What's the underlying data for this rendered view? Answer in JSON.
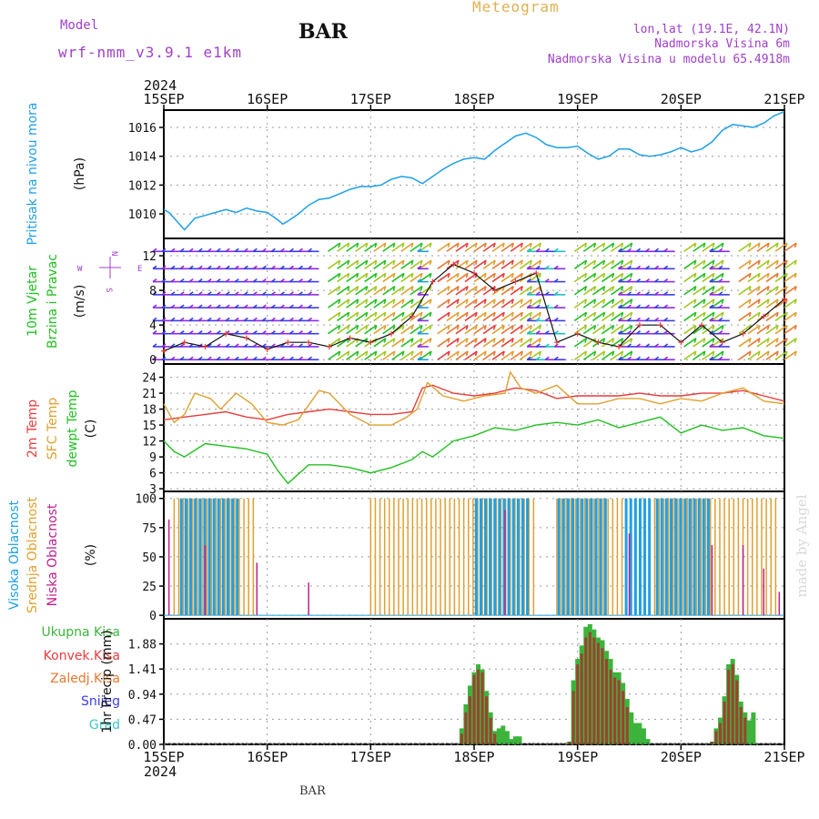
{
  "header": {
    "model_label": "Model",
    "model_name": "wrf-nmm_v3.9.1 e1km",
    "station": "BAR",
    "title": "Meteogram",
    "lonlat": "lon,lat (19.1E, 42.1N)",
    "altitude": "Nadmorska Visina 6m",
    "model_altitude": "Nadmorska Visina u modelu 65.4918m",
    "credit": "made by Angel",
    "footer_station": "BAR"
  },
  "colors": {
    "pressure": "#1fa0e6",
    "t2m": "#e83c3c",
    "sfc": "#e0a030",
    "dewpt": "#22c022",
    "high_cloud": "#1fa0e6",
    "mid_cloud": "#e0a030",
    "low_cloud": "#c0208c",
    "total_rain": "#3cb43c",
    "conv_rain": "#e83c3c",
    "frz_rain": "#e87830",
    "snow": "#3c3ce6",
    "hail": "#3cc8c8",
    "header_purple": "#a040c8",
    "header_gold": "#e0b050"
  },
  "chart_data": [
    {
      "type": "line",
      "name": "pressure",
      "ylabels": [
        "Pritisak na nivou mora",
        "(hPa)"
      ],
      "yticks": [
        1010,
        1012,
        1014,
        1016
      ],
      "ylim": [
        1008.3,
        1017.2
      ],
      "x_unit": "days since 15SEP",
      "xticks": [
        "15SEP",
        "16SEP",
        "17SEP",
        "18SEP",
        "19SEP",
        "20SEP",
        "21SEP"
      ],
      "year": "2024",
      "grid": true,
      "series": [
        {
          "name": "slp",
          "x": [
            0,
            0.05,
            0.1,
            0.2,
            0.25,
            0.3,
            0.4,
            0.5,
            0.6,
            0.7,
            0.8,
            0.9,
            1.0,
            1.1,
            1.15,
            1.2,
            1.3,
            1.4,
            1.5,
            1.6,
            1.7,
            1.8,
            1.9,
            2.0,
            2.1,
            2.2,
            2.3,
            2.4,
            2.5,
            2.6,
            2.7,
            2.8,
            2.9,
            3.0,
            3.1,
            3.2,
            3.3,
            3.4,
            3.5,
            3.6,
            3.7,
            3.8,
            3.9,
            4.0,
            4.1,
            4.2,
            4.3,
            4.4,
            4.5,
            4.6,
            4.7,
            4.8,
            4.9,
            5.0,
            5.1,
            5.2,
            5.3,
            5.4,
            5.5,
            5.6,
            5.7,
            5.8,
            5.9,
            6.0
          ],
          "values": [
            1010.3,
            1010.1,
            1009.7,
            1008.9,
            1009.3,
            1009.7,
            1009.9,
            1010.1,
            1010.3,
            1010.1,
            1010.4,
            1010.2,
            1010.1,
            1009.6,
            1009.3,
            1009.5,
            1010.0,
            1010.6,
            1011.0,
            1011.1,
            1011.4,
            1011.7,
            1011.9,
            1011.9,
            1012.0,
            1012.4,
            1012.6,
            1012.5,
            1012.1,
            1012.6,
            1013.1,
            1013.5,
            1013.8,
            1013.9,
            1013.8,
            1014.4,
            1014.9,
            1015.4,
            1015.6,
            1015.3,
            1014.8,
            1014.6,
            1014.6,
            1014.7,
            1014.2,
            1013.8,
            1014.0,
            1014.5,
            1014.5,
            1014.1,
            1014.0,
            1014.1,
            1014.3,
            1014.6,
            1014.3,
            1014.5,
            1015.0,
            1015.8,
            1016.2,
            1016.1,
            1016.0,
            1016.3,
            1016.8,
            1017.1
          ]
        }
      ]
    },
    {
      "type": "scatter",
      "name": "wind",
      "ylabels": [
        "10m Vjetar",
        "Brzina i Pravac",
        "(m/s)"
      ],
      "yticks": [
        0,
        4,
        8,
        12
      ],
      "ylim": [
        -0.5,
        14
      ],
      "compass": [
        "N",
        "W",
        "E",
        "S"
      ],
      "grid": true,
      "series": [
        {
          "name": "speed",
          "x": [
            0,
            0.2,
            0.4,
            0.6,
            0.8,
            1.0,
            1.2,
            1.4,
            1.6,
            1.8,
            2.0,
            2.2,
            2.4,
            2.6,
            2.8,
            3.0,
            3.2,
            3.4,
            3.6,
            3.8,
            4.0,
            4.2,
            4.4,
            4.6,
            4.8,
            5.0,
            5.2,
            5.4,
            5.6,
            5.8,
            6.0
          ],
          "values": [
            1.0,
            2.0,
            1.5,
            3.0,
            2.5,
            1.2,
            2.0,
            2.0,
            1.5,
            2.5,
            2.0,
            3.0,
            5.0,
            9.0,
            11.0,
            10.0,
            8.0,
            9.0,
            10.0,
            2.0,
            3.0,
            2.0,
            1.5,
            4.0,
            4.0,
            2.0,
            4.0,
            2.0,
            3.0,
            5.0,
            7.0
          ]
        }
      ]
    },
    {
      "type": "line",
      "name": "temperature",
      "ylabels": [
        "2m Temp",
        "SFC Temp",
        "dewpt Temp",
        "(C)"
      ],
      "yticks": [
        3,
        6,
        9,
        12,
        15,
        18,
        21,
        24
      ],
      "ylim": [
        2.5,
        26.5
      ],
      "grid": true,
      "series": [
        {
          "name": "2m Temp",
          "x": [
            0,
            0.2,
            0.4,
            0.6,
            0.8,
            1.0,
            1.2,
            1.4,
            1.6,
            1.8,
            2.0,
            2.2,
            2.4,
            2.5,
            2.6,
            2.8,
            3.0,
            3.2,
            3.4,
            3.6,
            3.8,
            4.0,
            4.2,
            4.4,
            4.6,
            4.8,
            5.0,
            5.2,
            5.4,
            5.6,
            5.8,
            6.0
          ],
          "values": [
            16,
            16.5,
            17,
            17.5,
            16.5,
            16,
            17,
            17.5,
            18,
            17.5,
            17,
            17,
            17.5,
            22,
            22.5,
            21,
            20.5,
            21,
            22,
            21.5,
            20,
            20.5,
            20.5,
            20.5,
            21,
            20.5,
            20.5,
            21,
            21,
            21.5,
            20.5,
            19.5
          ]
        },
        {
          "name": "SFC Temp",
          "x": [
            0,
            0.1,
            0.2,
            0.3,
            0.45,
            0.55,
            0.7,
            0.85,
            1.0,
            1.15,
            1.3,
            1.5,
            1.6,
            1.8,
            2.0,
            2.2,
            2.35,
            2.45,
            2.55,
            2.7,
            2.9,
            3.1,
            3.3,
            3.35,
            3.45,
            3.6,
            3.8,
            4.0,
            4.2,
            4.4,
            4.6,
            4.8,
            5.0,
            5.2,
            5.4,
            5.6,
            5.8,
            6.0
          ],
          "values": [
            19,
            15.5,
            17,
            21,
            20,
            18,
            21,
            19,
            15.5,
            15,
            16,
            21.5,
            21,
            17,
            15,
            15,
            16.5,
            18,
            23,
            20.5,
            19.5,
            20.5,
            21,
            25,
            22,
            21,
            22.5,
            19,
            19,
            20,
            20,
            19,
            20,
            19.5,
            21,
            22,
            19.5,
            19
          ]
        },
        {
          "name": "dewpt Temp",
          "x": [
            0,
            0.1,
            0.2,
            0.4,
            0.6,
            0.8,
            1.0,
            1.1,
            1.2,
            1.4,
            1.6,
            1.8,
            2.0,
            2.2,
            2.4,
            2.5,
            2.6,
            2.8,
            3.0,
            3.2,
            3.4,
            3.6,
            3.8,
            4.0,
            4.2,
            4.4,
            4.6,
            4.8,
            5.0,
            5.2,
            5.4,
            5.6,
            5.8,
            6.0
          ],
          "values": [
            12,
            10,
            9,
            11.5,
            11,
            10.5,
            9.5,
            6.5,
            4,
            7.5,
            7.5,
            7,
            6,
            7,
            8.5,
            10,
            9,
            12,
            13,
            14.5,
            14,
            15,
            15.5,
            15,
            16,
            14.5,
            15.5,
            16.5,
            13.5,
            15,
            14,
            14.5,
            13,
            12.5
          ]
        }
      ]
    },
    {
      "type": "bar",
      "name": "cloud",
      "ylabels": [
        "Visoka Oblacnost",
        "Srednja Oblacnost",
        "Niska Oblacnost",
        "(%)"
      ],
      "yticks": [
        0,
        25,
        50,
        75,
        100
      ],
      "ylim": [
        -3,
        106
      ],
      "grid": true,
      "series": [
        {
          "name": "Visoka Oblacnost",
          "ranges": [
            [
              0.15,
              0.75
            ],
            [
              3.0,
              3.55
            ],
            [
              3.8,
              4.3
            ],
            [
              4.45,
              4.7
            ],
            [
              4.75,
              5.3
            ]
          ],
          "value": 100
        },
        {
          "name": "Srednja Oblacnost",
          "ranges": [
            [
              0.1,
              0.9
            ],
            [
              2.0,
              3.6
            ],
            [
              3.8,
              5.95
            ]
          ],
          "value": 100
        },
        {
          "name": "Niska Oblacnost",
          "points": [
            [
              0.05,
              82
            ],
            [
              0.4,
              60
            ],
            [
              0.9,
              45
            ],
            [
              1.4,
              28
            ],
            [
              3.3,
              90
            ],
            [
              4.5,
              70
            ],
            [
              5.3,
              60
            ],
            [
              5.6,
              60
            ],
            [
              5.8,
              40
            ],
            [
              5.95,
              20
            ]
          ]
        }
      ]
    },
    {
      "type": "bar",
      "name": "precip",
      "ylabels": [
        "Ukupna Kisa",
        "Konvek.Kisa",
        "Zaledj.Kisa",
        "Snijeg",
        "Grad",
        "1hr Precip (mm)"
      ],
      "yticks": [
        0,
        0.47,
        0.94,
        1.41,
        1.88
      ],
      "ylim": [
        0,
        2.35
      ],
      "grid": true,
      "series": [
        {
          "name": "Ukupna Kisa",
          "x": [
            2.88,
            2.92,
            2.96,
            3.0,
            3.04,
            3.08,
            3.12,
            3.16,
            3.2,
            3.24,
            3.28,
            3.32,
            3.36,
            3.4,
            3.44,
            3.92,
            3.96,
            4.0,
            4.04,
            4.08,
            4.12,
            4.16,
            4.2,
            4.24,
            4.28,
            4.32,
            4.36,
            4.4,
            4.44,
            4.48,
            4.52,
            4.56,
            4.6,
            4.64,
            4.68,
            5.3,
            5.34,
            5.38,
            5.42,
            5.46,
            5.5,
            5.54,
            5.58,
            5.62,
            5.66,
            5.7
          ],
          "values": [
            0.3,
            0.75,
            1.1,
            1.35,
            1.5,
            1.4,
            1.0,
            0.6,
            0.25,
            0.3,
            0.35,
            0.25,
            0.1,
            0.15,
            0.15,
            0.05,
            1.2,
            1.6,
            1.85,
            2.2,
            2.25,
            2.15,
            2.0,
            1.95,
            1.75,
            1.6,
            1.35,
            1.35,
            1.15,
            0.85,
            0.6,
            0.4,
            0.4,
            0.3,
            0.1,
            0.05,
            0.3,
            0.5,
            0.9,
            1.5,
            1.6,
            1.3,
            0.8,
            0.6,
            0.45,
            0.6
          ]
        },
        {
          "name": "Konvek.Kisa",
          "x": [
            2.88,
            2.92,
            2.96,
            3.0,
            3.04,
            3.08,
            3.12,
            3.16,
            3.2,
            3.92,
            3.96,
            4.0,
            4.04,
            4.08,
            4.12,
            4.16,
            4.2,
            4.24,
            4.28,
            4.32,
            4.36,
            4.4,
            4.44,
            4.48,
            5.3,
            5.34,
            5.38,
            5.42,
            5.46,
            5.5,
            5.54,
            5.58,
            5.62
          ],
          "values": [
            0.2,
            0.6,
            0.9,
            1.3,
            1.4,
            1.35,
            0.9,
            0.5,
            0.2,
            0.05,
            1.0,
            1.5,
            1.7,
            2.0,
            2.1,
            2.0,
            1.9,
            1.8,
            1.6,
            1.4,
            1.25,
            1.2,
            1.0,
            0.7,
            0.05,
            0.25,
            0.4,
            0.8,
            1.4,
            1.5,
            1.2,
            0.7,
            0.5
          ]
        }
      ]
    }
  ]
}
